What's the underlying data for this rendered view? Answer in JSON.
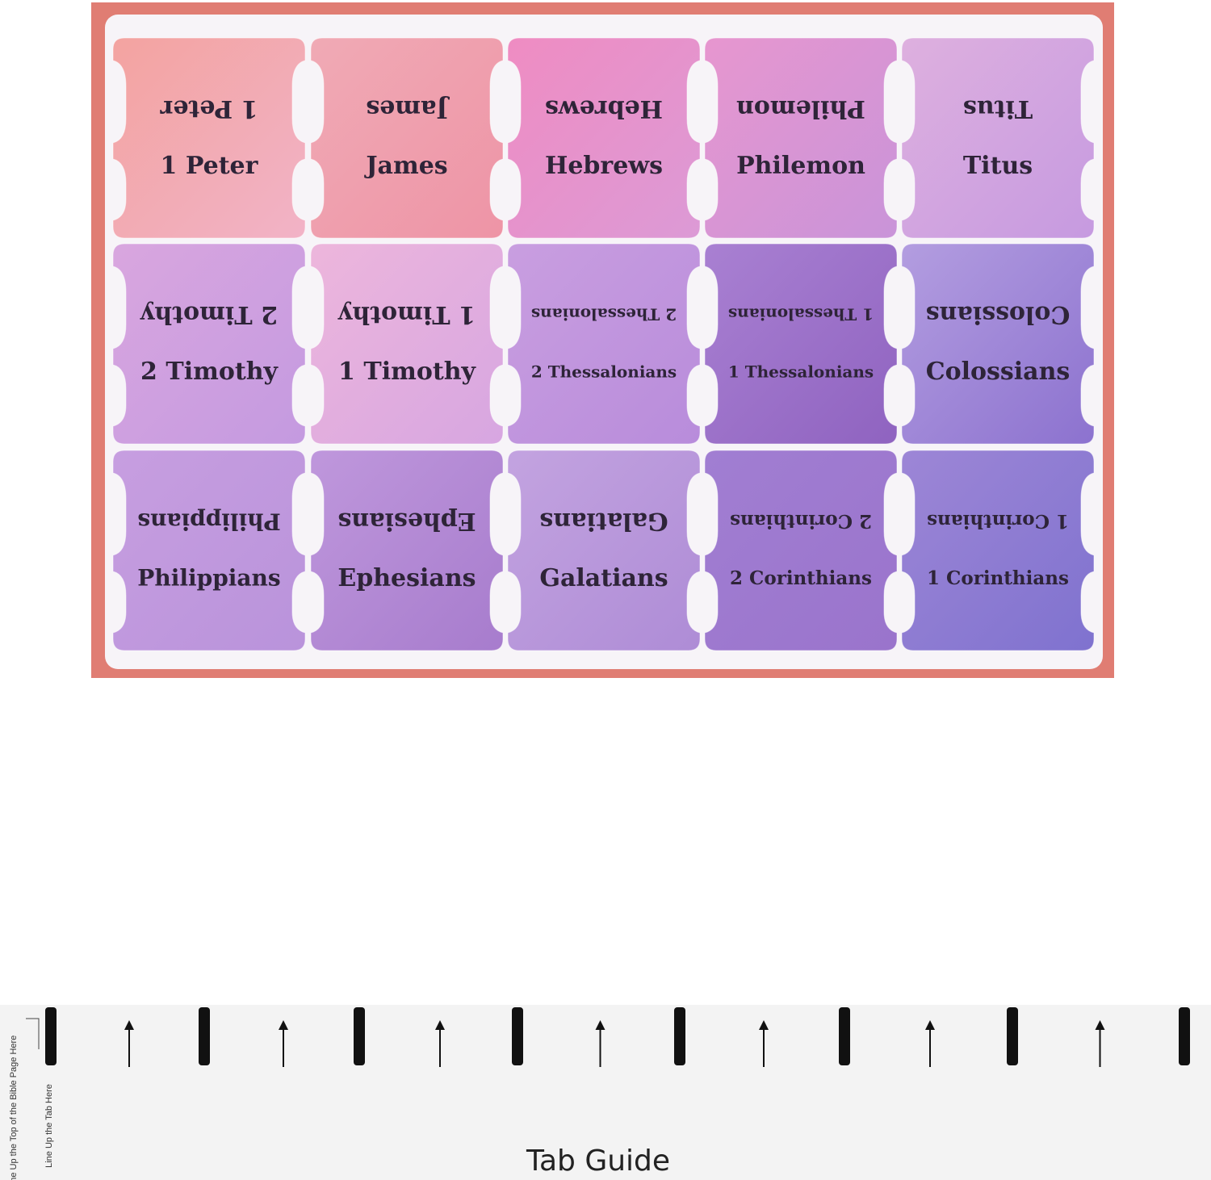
{
  "sheet": {
    "tabs": [
      "1 Peter",
      "James",
      "Hebrews",
      "Philemon",
      "Titus",
      "2 Timothy",
      "1 Timothy",
      "2 Thessalonians",
      "1 Thessalonians",
      "Colossians",
      "Philippians",
      "Ephesians",
      "Galatians",
      "2 Corinthians",
      "1 Corinthians"
    ]
  },
  "guide": {
    "title": "Tab Guide",
    "top_note": "Line Up the Top of the Bible Page Here",
    "tab_note": "Line Up the Tab Here"
  }
}
